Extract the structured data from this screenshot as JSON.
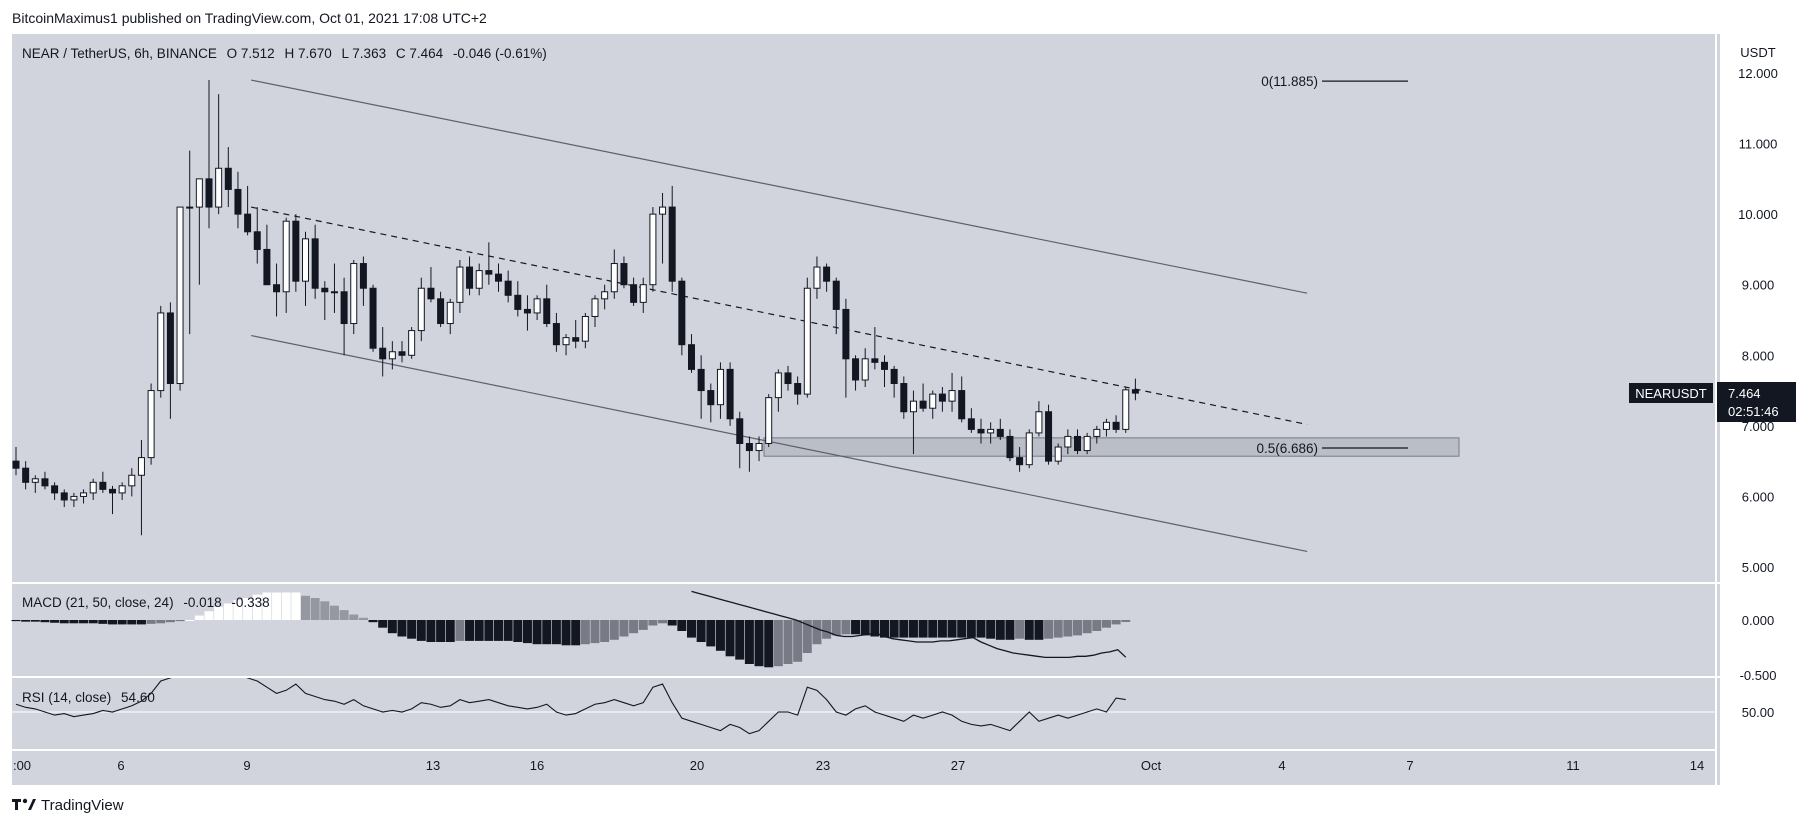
{
  "header": {
    "publisher_text": "BitcoinMaximus1 published on TradingView.com, Oct 01, 2021 17:08 UTC+2"
  },
  "footer": {
    "brand": "TradingView",
    "logo_icon": "tradingview-logo-icon"
  },
  "colors": {
    "background": "#d1d4dc",
    "candle_up": "#ffffff",
    "candle_down": "#131722",
    "text": "#131722",
    "panel_border": "#ffffff",
    "price_tag_bg": "#131722"
  },
  "chart_data": {
    "type": "candlestick",
    "symbol_line": {
      "symbol": "NEAR / TetherUS, 6h, BINANCE",
      "o_label": "O",
      "o": "7.512",
      "h_label": "H",
      "h": "7.670",
      "l_label": "L",
      "l": "7.363",
      "c_label": "C",
      "c": "7.464",
      "change": "-0.046 (-0.61%)"
    },
    "currency_label": "USDT",
    "y_ticks": [
      "12.000",
      "11.000",
      "10.000",
      "9.000",
      "8.000",
      "7.000",
      "6.000",
      "5.000"
    ],
    "x_ticks": [
      ":00",
      "6",
      "9",
      "13",
      "16",
      "20",
      "23",
      "27",
      "Oct",
      "4",
      "7",
      "11",
      "14"
    ],
    "ylim": [
      5.0,
      12.0
    ],
    "price_tag": {
      "label": "NEARUSDT",
      "value": "7.464",
      "countdown": "02:51:46"
    },
    "fib_levels": [
      {
        "label": "0(11.885)",
        "value": 11.885
      },
      {
        "label": "0.5(6.686)",
        "value": 6.686
      }
    ],
    "support_zone": {
      "low": 6.57,
      "high": 6.83
    },
    "channel": {
      "upper": {
        "start": {
          "day": 9.1,
          "price": 11.9
        },
        "end": {
          "day": 34.8,
          "price": 8.88
        }
      },
      "middle": {
        "start": {
          "day": 9.1,
          "price": 10.1
        },
        "end": {
          "day": 34.8,
          "price": 7.02
        }
      },
      "lower": {
        "start": {
          "day": 9.1,
          "price": 8.28
        },
        "end": {
          "day": 34.8,
          "price": 5.22
        }
      }
    },
    "candles": [
      [
        6.5,
        6.7,
        6.3,
        6.4
      ],
      [
        6.4,
        6.5,
        6.1,
        6.2
      ],
      [
        6.2,
        6.3,
        6.05,
        6.25
      ],
      [
        6.25,
        6.35,
        6.1,
        6.15
      ],
      [
        6.15,
        6.2,
        5.95,
        6.05
      ],
      [
        6.05,
        6.1,
        5.85,
        5.95
      ],
      [
        5.95,
        6.05,
        5.85,
        6.0
      ],
      [
        6.0,
        6.1,
        5.9,
        6.05
      ],
      [
        6.05,
        6.25,
        5.95,
        6.2
      ],
      [
        6.2,
        6.35,
        6.05,
        6.1
      ],
      [
        6.1,
        6.15,
        5.75,
        6.05
      ],
      [
        6.05,
        6.2,
        5.95,
        6.15
      ],
      [
        6.15,
        6.4,
        6.0,
        6.3
      ],
      [
        6.3,
        6.8,
        5.45,
        6.55
      ],
      [
        6.55,
        7.6,
        6.45,
        7.5
      ],
      [
        7.5,
        8.7,
        7.4,
        8.6
      ],
      [
        8.6,
        8.75,
        7.1,
        7.6
      ],
      [
        7.6,
        10.1,
        7.5,
        10.1
      ],
      [
        10.1,
        10.9,
        8.3,
        10.1
      ],
      [
        10.1,
        10.5,
        9.0,
        10.5
      ],
      [
        10.5,
        11.9,
        9.8,
        10.1
      ],
      [
        10.1,
        11.7,
        10.0,
        10.65
      ],
      [
        10.65,
        10.95,
        10.1,
        10.35
      ],
      [
        10.35,
        10.6,
        9.8,
        10.0
      ],
      [
        10.0,
        10.4,
        9.7,
        9.75
      ],
      [
        9.75,
        10.1,
        9.3,
        9.5
      ],
      [
        9.5,
        9.85,
        9.0,
        9.0
      ],
      [
        9.0,
        9.3,
        8.55,
        8.9
      ],
      [
        8.9,
        9.95,
        8.6,
        9.9
      ],
      [
        9.9,
        10.0,
        8.9,
        9.05
      ],
      [
        9.05,
        9.75,
        8.7,
        9.65
      ],
      [
        9.65,
        9.85,
        8.8,
        8.95
      ],
      [
        8.95,
        9.05,
        8.5,
        8.9
      ],
      [
        8.9,
        9.3,
        8.6,
        8.9
      ],
      [
        8.9,
        9.1,
        8.0,
        8.45
      ],
      [
        8.45,
        9.35,
        8.3,
        9.3
      ],
      [
        9.3,
        9.4,
        8.7,
        8.95
      ],
      [
        8.95,
        9.0,
        8.05,
        8.1
      ],
      [
        8.1,
        8.4,
        7.7,
        7.95
      ],
      [
        7.95,
        8.2,
        7.8,
        8.05
      ],
      [
        8.05,
        8.2,
        7.9,
        8.0
      ],
      [
        8.0,
        8.4,
        7.95,
        8.35
      ],
      [
        8.35,
        9.1,
        8.2,
        8.95
      ],
      [
        8.95,
        9.25,
        8.75,
        8.8
      ],
      [
        8.8,
        8.9,
        8.4,
        8.45
      ],
      [
        8.45,
        8.8,
        8.3,
        8.75
      ],
      [
        8.75,
        9.35,
        8.6,
        9.25
      ],
      [
        9.25,
        9.4,
        8.85,
        8.95
      ],
      [
        8.95,
        9.3,
        8.85,
        9.2
      ],
      [
        9.2,
        9.6,
        9.0,
        9.15
      ],
      [
        9.15,
        9.3,
        8.9,
        9.05
      ],
      [
        9.05,
        9.2,
        8.75,
        8.85
      ],
      [
        8.85,
        9.05,
        8.55,
        8.65
      ],
      [
        8.65,
        8.85,
        8.35,
        8.6
      ],
      [
        8.6,
        8.85,
        8.5,
        8.8
      ],
      [
        8.8,
        9.0,
        8.4,
        8.45
      ],
      [
        8.45,
        8.6,
        8.05,
        8.15
      ],
      [
        8.15,
        8.3,
        8.0,
        8.25
      ],
      [
        8.25,
        8.5,
        8.1,
        8.2
      ],
      [
        8.2,
        8.6,
        8.1,
        8.55
      ],
      [
        8.55,
        8.85,
        8.4,
        8.8
      ],
      [
        8.8,
        9.0,
        8.65,
        8.9
      ],
      [
        8.9,
        9.5,
        8.8,
        9.3
      ],
      [
        9.3,
        9.4,
        8.95,
        9.0
      ],
      [
        9.0,
        9.1,
        8.7,
        8.75
      ],
      [
        8.75,
        9.1,
        8.6,
        9.0
      ],
      [
        9.0,
        10.1,
        8.9,
        10.0
      ],
      [
        10.0,
        10.3,
        9.3,
        10.1
      ],
      [
        10.1,
        10.4,
        8.9,
        9.05
      ],
      [
        9.05,
        9.1,
        8.0,
        8.15
      ],
      [
        8.15,
        8.3,
        7.75,
        7.8
      ],
      [
        7.8,
        8.0,
        7.1,
        7.5
      ],
      [
        7.5,
        7.6,
        7.05,
        7.3
      ],
      [
        7.3,
        7.9,
        7.1,
        7.8
      ],
      [
        7.8,
        7.9,
        7.0,
        7.1
      ],
      [
        7.1,
        7.2,
        6.4,
        6.75
      ],
      [
        6.75,
        6.85,
        6.35,
        6.65
      ],
      [
        6.65,
        6.85,
        6.5,
        6.75
      ],
      [
        6.75,
        7.45,
        6.7,
        7.4
      ],
      [
        7.4,
        7.8,
        7.2,
        7.75
      ],
      [
        7.75,
        7.85,
        7.5,
        7.6
      ],
      [
        7.6,
        7.7,
        7.3,
        7.45
      ],
      [
        7.45,
        9.1,
        7.4,
        8.95
      ],
      [
        8.95,
        9.4,
        8.8,
        9.25
      ],
      [
        9.25,
        9.3,
        8.9,
        9.05
      ],
      [
        9.05,
        9.1,
        8.3,
        8.65
      ],
      [
        8.65,
        8.8,
        7.4,
        7.95
      ],
      [
        7.95,
        8.0,
        7.5,
        7.65
      ],
      [
        7.65,
        8.1,
        7.55,
        7.95
      ],
      [
        7.95,
        8.4,
        7.8,
        7.9
      ],
      [
        7.9,
        8.0,
        7.55,
        7.8
      ],
      [
        7.8,
        7.85,
        7.4,
        7.6
      ],
      [
        7.6,
        7.7,
        7.1,
        7.2
      ],
      [
        7.2,
        7.5,
        6.6,
        7.35
      ],
      [
        7.35,
        7.6,
        7.2,
        7.25
      ],
      [
        7.25,
        7.5,
        7.1,
        7.45
      ],
      [
        7.45,
        7.55,
        7.2,
        7.35
      ],
      [
        7.35,
        7.75,
        7.2,
        7.5
      ],
      [
        7.5,
        7.7,
        7.05,
        7.1
      ],
      [
        7.1,
        7.25,
        6.9,
        6.95
      ],
      [
        6.95,
        7.1,
        6.75,
        6.9
      ],
      [
        6.9,
        7.05,
        6.75,
        6.95
      ],
      [
        6.95,
        7.1,
        6.8,
        6.85
      ],
      [
        6.85,
        6.95,
        6.5,
        6.55
      ],
      [
        6.55,
        6.7,
        6.35,
        6.45
      ],
      [
        6.45,
        6.95,
        6.4,
        6.9
      ],
      [
        6.9,
        7.35,
        6.85,
        7.2
      ],
      [
        7.2,
        7.3,
        6.45,
        6.5
      ],
      [
        6.5,
        6.75,
        6.45,
        6.7
      ],
      [
        6.7,
        6.95,
        6.6,
        6.85
      ],
      [
        6.85,
        6.95,
        6.6,
        6.65
      ],
      [
        6.65,
        6.9,
        6.6,
        6.85
      ],
      [
        6.85,
        7.0,
        6.75,
        6.95
      ],
      [
        6.95,
        7.1,
        6.85,
        7.05
      ],
      [
        7.05,
        7.15,
        6.9,
        6.95
      ],
      [
        6.95,
        7.55,
        6.9,
        7.51
      ],
      [
        7.512,
        7.67,
        7.363,
        7.464
      ]
    ],
    "macd": {
      "label": "MACD (21, 50, close, 24)",
      "value1": "-0.018",
      "value2": "-0.338",
      "zero_tick": "0.000",
      "low_tick": "-0.500",
      "ylim": [
        -0.53,
        0.2
      ],
      "histogram": [
        -0.01,
        -0.015,
        -0.015,
        -0.02,
        -0.025,
        -0.03,
        -0.03,
        -0.03,
        -0.03,
        -0.035,
        -0.04,
        -0.04,
        -0.04,
        -0.04,
        -0.035,
        -0.03,
        -0.02,
        -0.01,
        0.0,
        0.04,
        0.08,
        0.12,
        0.15,
        0.18,
        0.2,
        0.23,
        0.25,
        0.25,
        0.25,
        0.25,
        0.22,
        0.2,
        0.17,
        0.13,
        0.09,
        0.05,
        0.02,
        -0.02,
        -0.07,
        -0.12,
        -0.15,
        -0.17,
        -0.19,
        -0.2,
        -0.2,
        -0.2,
        -0.19,
        -0.19,
        -0.19,
        -0.19,
        -0.19,
        -0.19,
        -0.2,
        -0.21,
        -0.22,
        -0.22,
        -0.22,
        -0.23,
        -0.23,
        -0.22,
        -0.21,
        -0.2,
        -0.18,
        -0.15,
        -0.12,
        -0.09,
        -0.05,
        -0.03,
        -0.05,
        -0.1,
        -0.16,
        -0.2,
        -0.24,
        -0.28,
        -0.33,
        -0.36,
        -0.4,
        -0.42,
        -0.43,
        -0.42,
        -0.4,
        -0.38,
        -0.3,
        -0.22,
        -0.17,
        -0.14,
        -0.13,
        -0.13,
        -0.14,
        -0.15,
        -0.16,
        -0.16,
        -0.16,
        -0.16,
        -0.16,
        -0.16,
        -0.16,
        -0.16,
        -0.16,
        -0.16,
        -0.16,
        -0.17,
        -0.18,
        -0.18,
        -0.17,
        -0.18,
        -0.18,
        -0.17,
        -0.16,
        -0.15,
        -0.14,
        -0.12,
        -0.1,
        -0.07,
        -0.04,
        -0.018
      ],
      "signal": [
        0.26,
        0.24,
        0.22,
        0.2,
        0.18,
        0.16,
        0.14,
        0.12,
        0.1,
        0.08,
        0.06,
        0.04,
        0.02,
        0.0,
        -0.03,
        -0.06,
        -0.09,
        -0.11,
        -0.14,
        -0.15,
        -0.15,
        -0.14,
        -0.13,
        -0.12,
        -0.15,
        -0.17,
        -0.18,
        -0.19,
        -0.2,
        -0.2,
        -0.2,
        -0.19,
        -0.19,
        -0.18,
        -0.17,
        -0.16,
        -0.2,
        -0.23,
        -0.26,
        -0.28,
        -0.3,
        -0.31,
        -0.32,
        -0.33,
        -0.34,
        -0.34,
        -0.34,
        -0.34,
        -0.33,
        -0.33,
        -0.32,
        -0.3,
        -0.29,
        -0.27,
        -0.338
      ]
    },
    "rsi": {
      "label": "RSI (14, close)",
      "value": "54.60",
      "tick": "50.00",
      "ylim": [
        20,
        75
      ],
      "line": [
        55,
        53,
        52,
        50,
        48,
        49,
        47,
        48,
        49,
        51,
        50,
        52,
        54,
        57,
        62,
        70,
        72,
        74,
        76,
        78,
        80,
        78,
        76,
        74,
        72,
        70,
        66,
        62,
        64,
        68,
        62,
        60,
        58,
        57,
        55,
        58,
        54,
        52,
        50,
        51,
        50,
        52,
        56,
        55,
        53,
        54,
        58,
        56,
        57,
        58,
        56,
        54,
        53,
        52,
        53,
        55,
        50,
        48,
        49,
        52,
        55,
        56,
        58,
        56,
        54,
        56,
        66,
        68,
        56,
        46,
        44,
        42,
        40,
        38,
        42,
        40,
        36,
        38,
        44,
        50,
        50,
        48,
        66,
        64,
        58,
        50,
        48,
        52,
        54,
        50,
        48,
        46,
        44,
        48,
        46,
        48,
        50,
        48,
        44,
        42,
        41,
        42,
        40,
        38,
        44,
        50,
        44,
        46,
        48,
        46,
        48,
        50,
        52,
        50,
        59,
        58
      ]
    }
  }
}
